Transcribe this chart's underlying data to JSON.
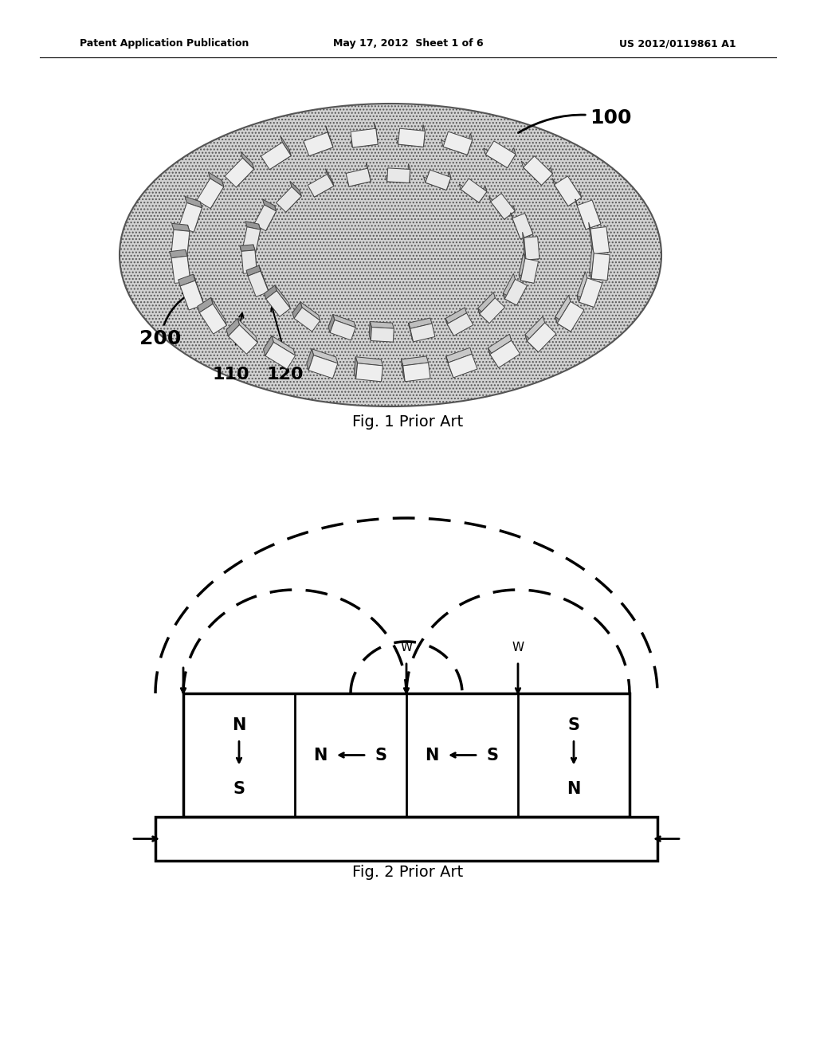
{
  "bg_color": "#ffffff",
  "header_left": "Patent Application Publication",
  "header_mid": "May 17, 2012  Sheet 1 of 6",
  "header_right": "US 2012/0119861 A1",
  "fig1_caption": "Fig. 1 Prior Art",
  "fig2_caption": "Fig. 2 Prior Art",
  "label_100": "100",
  "label_200": "200",
  "label_110": "110",
  "label_120": "120",
  "ellipse_color": "#c8c8c8",
  "ellipse_hatch": "....",
  "block_face": "#e0e0e0",
  "block_top": "#c0c0c0",
  "block_side": "#a0a0a0",
  "block_edge": "#444444"
}
